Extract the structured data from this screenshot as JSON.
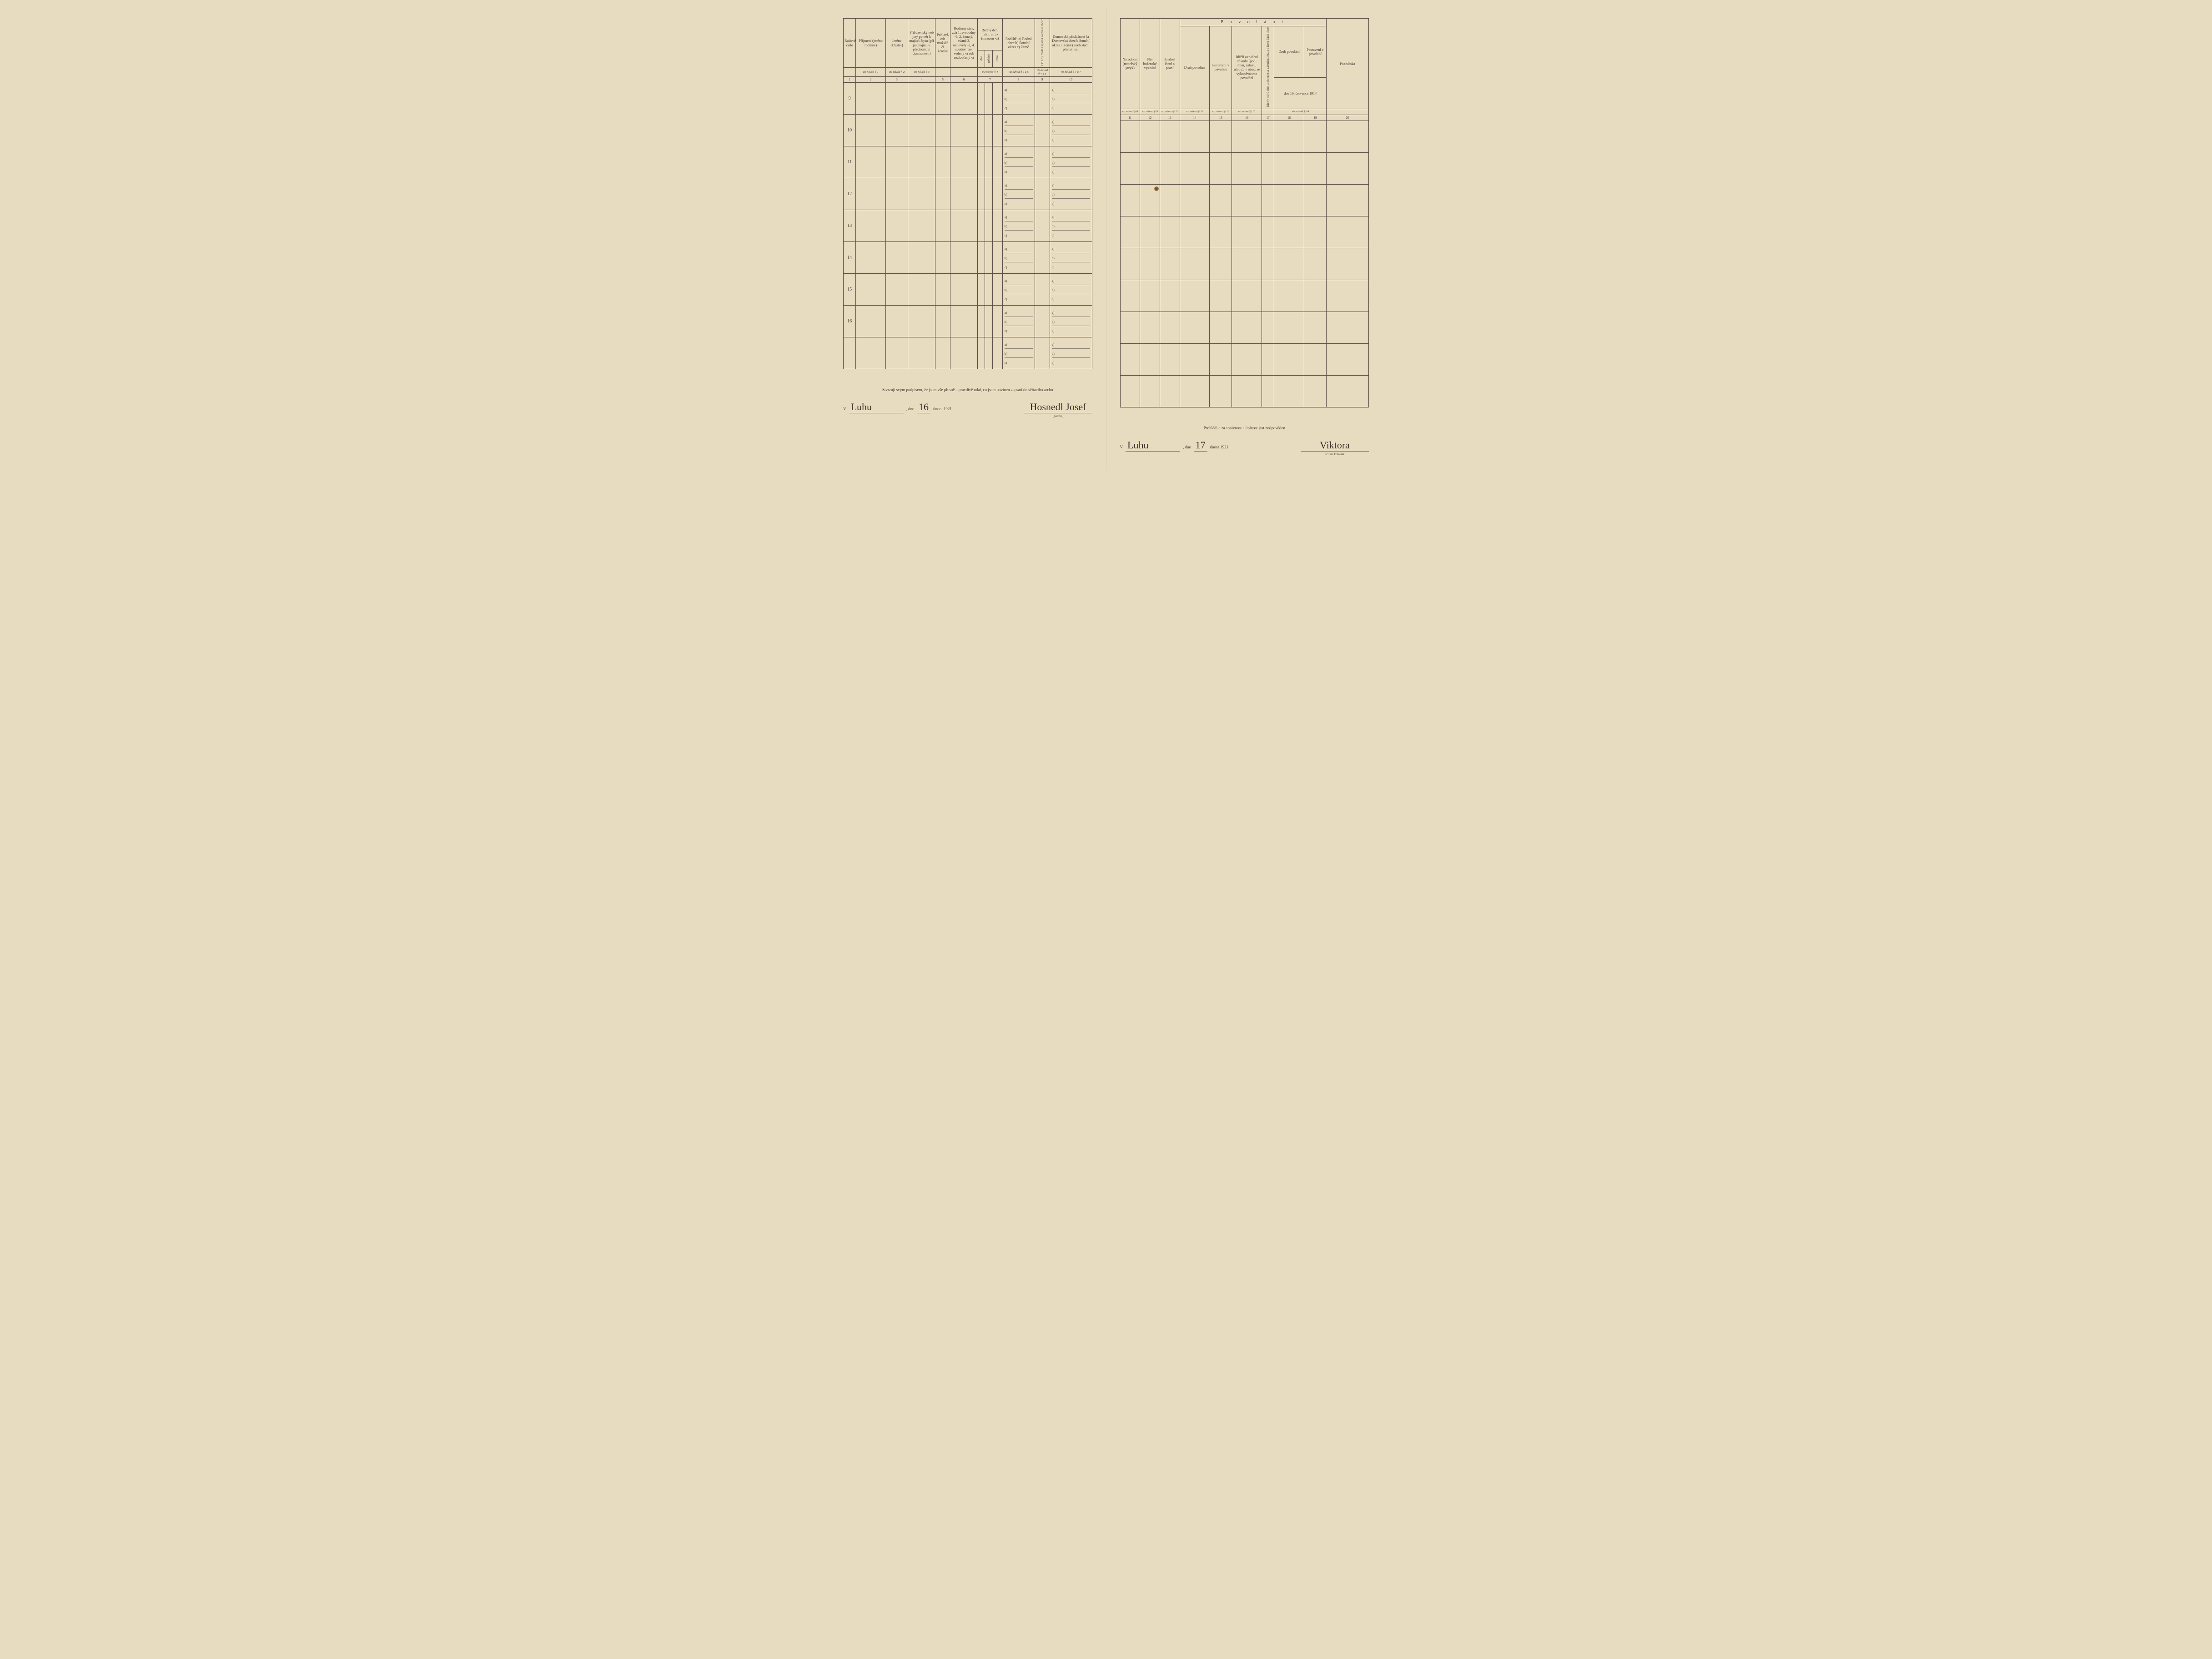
{
  "left": {
    "headers": {
      "c1": "Řadové\nčíslo",
      "c2": "Příjmení\n(jméno rodinné)",
      "c3": "Jméno\n(křestní)",
      "c4": "Příbuzenský\nneb jiný poměr\nk majiteli bytu\n(při podnájmu\nk přednostovi\ndomácnosti)",
      "c5": "Pohlaví,\nzda\nmužské\nči\nženské",
      "c6": "Rodinný\nstav, zda\n1. svobodný -á,\n2. ženatý, vdaná\n3. ovdovělý -á,\n4. soudně roz-\nvedený -á neb\nrozloučený -á",
      "c7_group": "Rodný den,\nměsíc a rok\n(narozen -a)",
      "c7a": "dne",
      "c7b": "měsíce",
      "c7c": "roku",
      "c8": "Rodiště:\na) Rodná obec\nb) Soudní okres\nc) Země",
      "c9": "Od kdy bydlí zapsaná\nosoba v obci?",
      "c10": "Domovská\npříslušnost\n(a Domovská obec\nb Soudní okres\nc Země)\naneb\nstátní\npříslušnost"
    },
    "refs": [
      "",
      "viz návod § 1",
      "viz návod § 2",
      "viz návod § 3",
      "",
      "",
      "viz návod § 4",
      "viz návod § 4 a 5",
      "viz návod § 4 a 6",
      "viz návod § 4 a 7"
    ],
    "nums": [
      "1",
      "2",
      "3",
      "4",
      "5",
      "6",
      "7",
      "8",
      "9",
      "10"
    ],
    "row_numbers": [
      "9",
      "10",
      "11",
      "12",
      "13",
      "14",
      "15",
      "16",
      ""
    ],
    "sublabels": [
      "a)",
      "b)",
      "c)"
    ],
    "footer": {
      "attest": "Stvrzuji svým podpisem, že jsem vše přesně a pravdivě udal, co jsem povinen zapsati do sčítacího archu",
      "v": "V",
      "place": "Luhu",
      "dne": ", dne",
      "day": "16",
      "month_year": "února 1921.",
      "sig": "Hosnedl Josef",
      "sig_note": "(podpis)"
    }
  },
  "right": {
    "headers": {
      "c11": "Národnost\n(mateřský\njazyk)",
      "c12": "Ná-\nboženské\nvyznání",
      "c13": "Znalost\nčtení\na psaní",
      "povolani": "P o v o l á n í",
      "c14": "Druh povolání",
      "c15": "Postavení\nv povolání",
      "c16": "Bližší označení\nzávodu (pod-\nniku, ústavu,\núřadu), v němž\nse vykonává\ntoto povolání",
      "c17": "kde (v které obci a okrese) se závod nalézá a v které části obce",
      "vedlejsi": "dne 16. července 1914",
      "c18": "Druh povolání",
      "c19": "Postavení\nv povolání",
      "c20": "Poznámka"
    },
    "refs": [
      "viz návod § 8",
      "viz návod § 9",
      "viz návod § 10",
      "viz návod § 11",
      "viz návod § 12",
      "viz návod § 13",
      "",
      "viz návod § 14",
      "",
      ""
    ],
    "nums": [
      "11",
      "12",
      "13",
      "14",
      "15",
      "16",
      "17",
      "18",
      "19",
      "20"
    ],
    "footer": {
      "attest": "Prohlédl a za správnost a úplnost jest zodpověden",
      "v": "V",
      "place": "Luhu",
      "dne": ", dne",
      "day": "17",
      "month_year": "února 1921.",
      "sig": "Viktora",
      "sig_note": "sčítací komisař"
    }
  },
  "colors": {
    "paper": "#e8dcc0",
    "ink": "#4a4038",
    "rule": "#5a5048"
  }
}
